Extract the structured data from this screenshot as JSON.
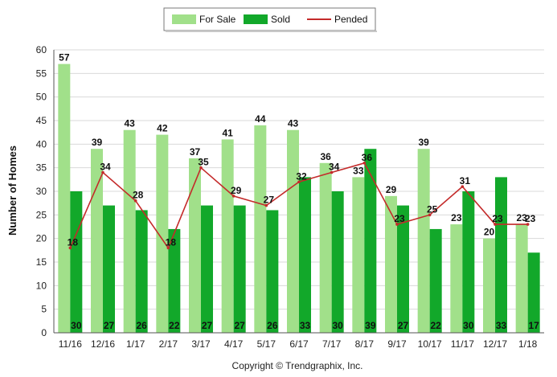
{
  "chart_data": {
    "type": "bar",
    "categories": [
      "11/16",
      "12/16",
      "1/17",
      "2/17",
      "3/17",
      "4/17",
      "5/17",
      "6/17",
      "7/17",
      "8/17",
      "9/17",
      "10/17",
      "11/17",
      "12/17",
      "1/18"
    ],
    "series": [
      {
        "name": "For Sale",
        "type": "bar",
        "color": "#a1e08a",
        "values": [
          57,
          39,
          43,
          42,
          37,
          41,
          44,
          43,
          36,
          33,
          29,
          39,
          23,
          20,
          23
        ]
      },
      {
        "name": "Sold",
        "type": "bar",
        "color": "#12a82a",
        "values": [
          30,
          27,
          26,
          22,
          27,
          27,
          26,
          33,
          30,
          39,
          27,
          22,
          30,
          33,
          17
        ]
      },
      {
        "name": "Pended",
        "type": "line",
        "color": "#c42a2a",
        "values": [
          18,
          34,
          28,
          18,
          35,
          29,
          27,
          32,
          34,
          36,
          23,
          25,
          31,
          23,
          23
        ]
      }
    ],
    "title": "",
    "xlabel": "",
    "ylabel": "Number of Homes",
    "ylim": [
      0,
      60
    ],
    "yticks": [
      0,
      5,
      10,
      15,
      20,
      25,
      30,
      35,
      40,
      45,
      50,
      55,
      60
    ],
    "grid": true,
    "legend": "top-center",
    "copyright": "Copyright © Trendgraphix, Inc."
  }
}
